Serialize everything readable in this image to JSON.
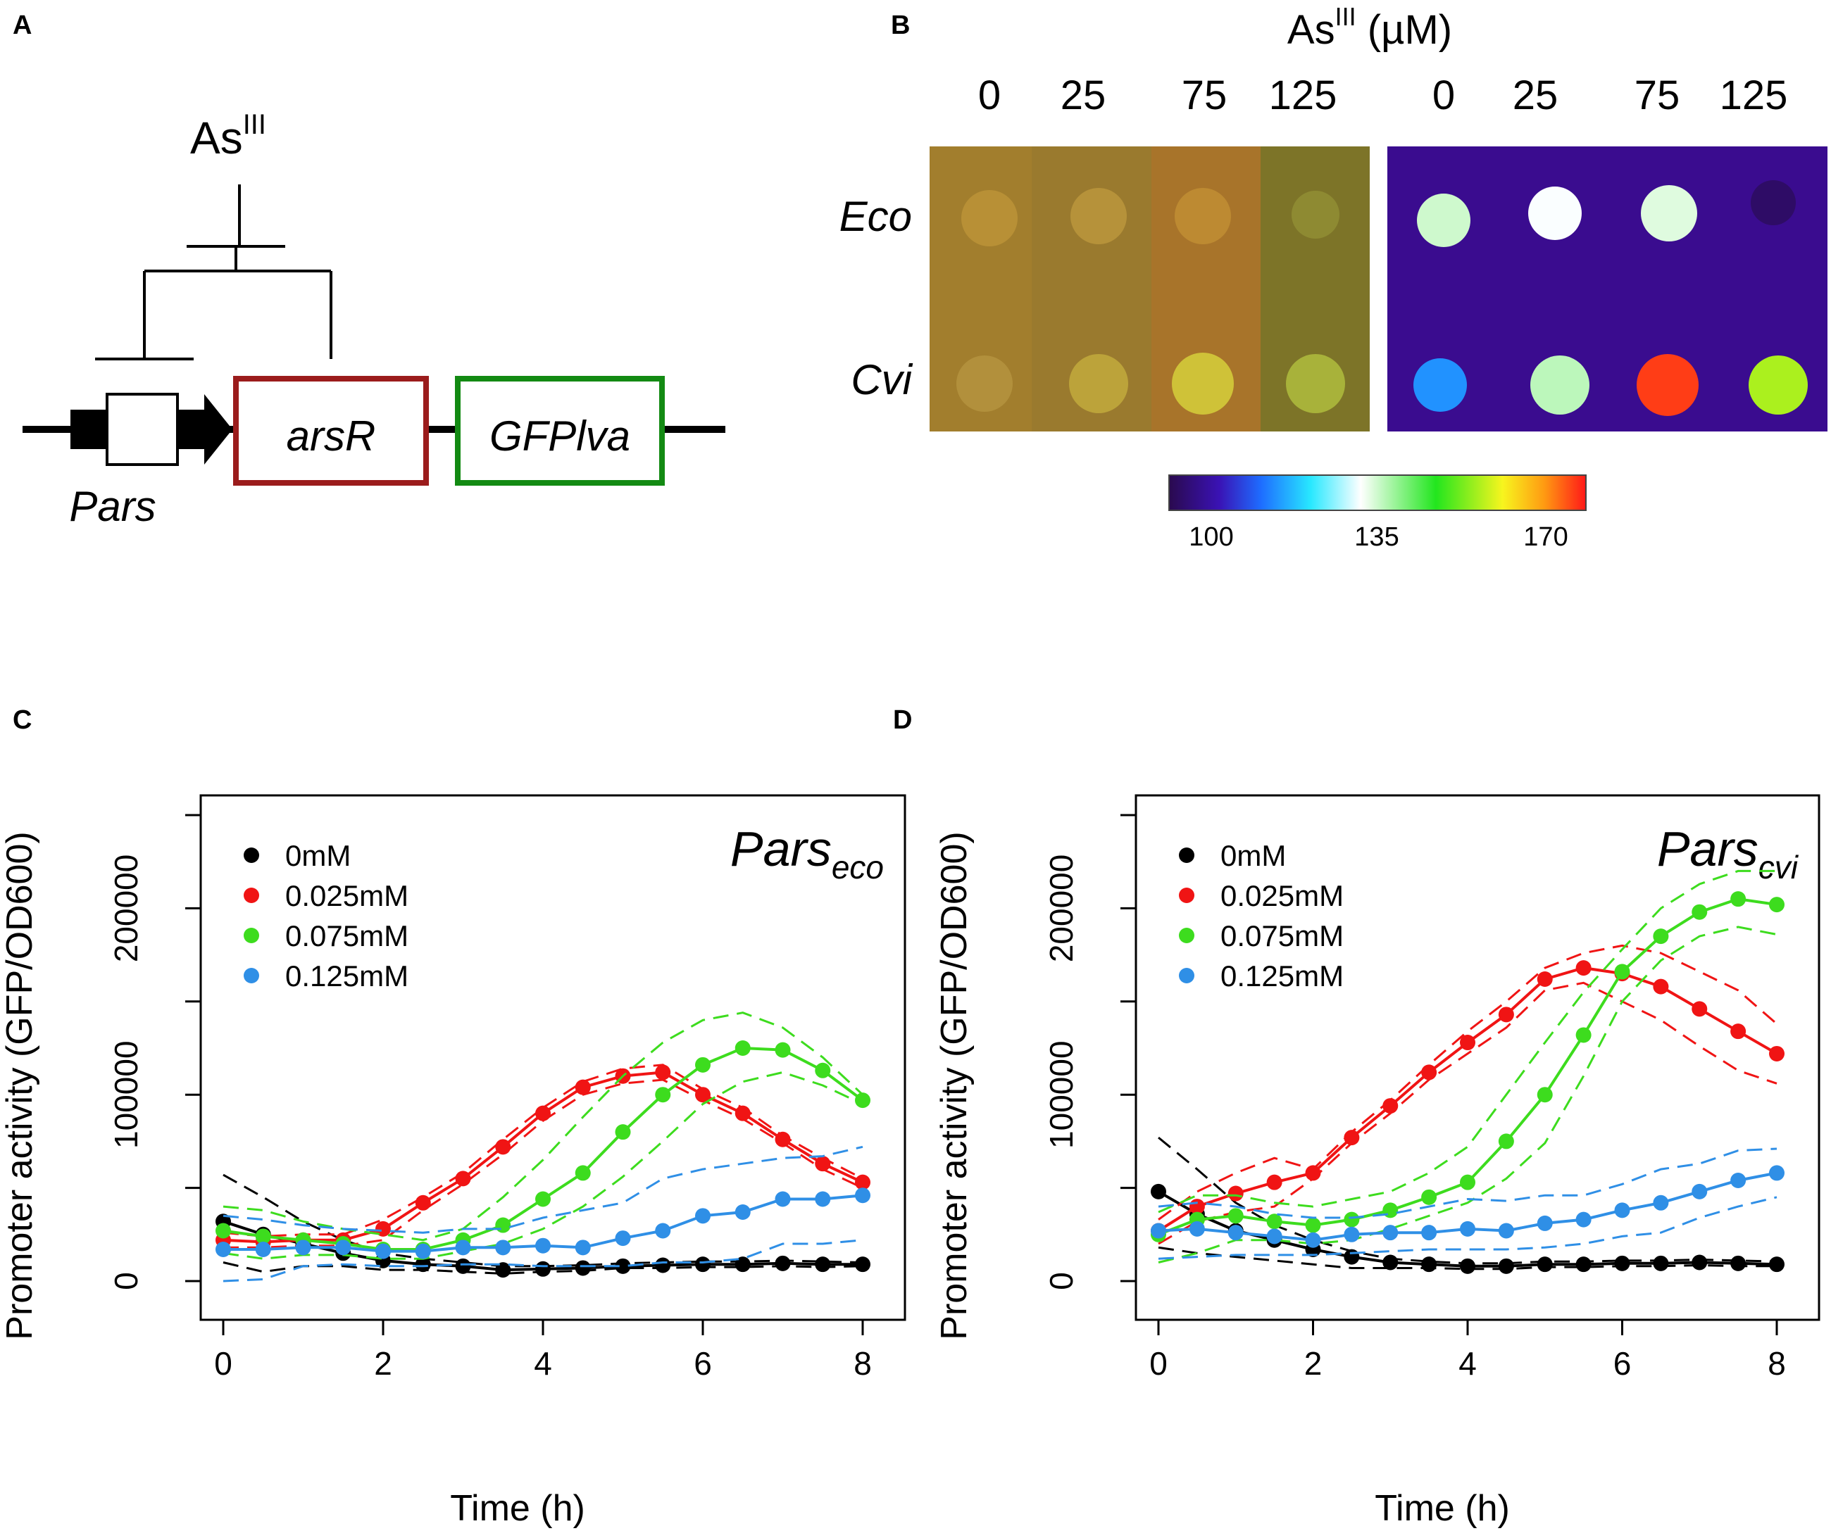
{
  "panel_labels": [
    "A",
    "B",
    "C",
    "D"
  ],
  "panel_a": {
    "effector_base": "As",
    "effector_sup": "III",
    "promoter": "Pars",
    "gene1": "arsR",
    "gene2": "GFPlva",
    "colors": {
      "gene1_box": "#9b1c1c",
      "gene2_box": "#138a13"
    }
  },
  "panel_b": {
    "title_base": "As",
    "title_sup": "III",
    "title_unit": " (µM)",
    "concentrations": [
      "0",
      "25",
      "75",
      "125"
    ],
    "strains": [
      "Eco",
      "Cvi"
    ],
    "colorbar_labels": [
      "100",
      "135",
      "170"
    ],
    "colorbar_range": [
      100,
      170
    ],
    "spot_intensity": {
      "Eco": [
        135,
        132,
        134,
        102
      ],
      "Cvi": [
        118,
        136,
        168,
        152
      ]
    }
  },
  "chart_data": [
    {
      "type": "line",
      "panel": "C",
      "title": "Pars",
      "title_sub": "eco",
      "xlabel": "Time (h)",
      "ylabel": "Promoter activity (GFP/OD600)",
      "xlim": [
        0,
        8
      ],
      "ylim": [
        0,
        250000
      ],
      "xticks": [
        "0",
        "2",
        "4",
        "6",
        "8"
      ],
      "yticks": [
        "0",
        "100000",
        "200000"
      ],
      "x": [
        0,
        0.5,
        1,
        1.5,
        2,
        2.5,
        3,
        3.5,
        4,
        4.5,
        5,
        5.5,
        6,
        6.5,
        7,
        7.5,
        8
      ],
      "series": [
        {
          "name": "0mM",
          "color": "#000000",
          "values": [
            32000,
            25000,
            20000,
            15000,
            11000,
            9000,
            8000,
            6000,
            6500,
            7000,
            8000,
            8500,
            9000,
            9000,
            9500,
            9000,
            9000
          ],
          "upper": [
            57000,
            45000,
            32000,
            22000,
            15000,
            12000,
            10000,
            8000,
            8000,
            8500,
            9500,
            10000,
            10500,
            10500,
            11000,
            10500,
            10000
          ],
          "lower": [
            10000,
            5000,
            8000,
            8000,
            6000,
            6000,
            5000,
            4000,
            5000,
            5500,
            7000,
            7000,
            7500,
            7500,
            8000,
            7500,
            8000
          ]
        },
        {
          "name": "0.025mM",
          "color": "#f01414",
          "values": [
            22000,
            21000,
            22000,
            22000,
            28000,
            42000,
            55000,
            72000,
            90000,
            104000,
            110000,
            112000,
            100000,
            90000,
            76000,
            63000,
            53000
          ],
          "upper": [
            26000,
            24000,
            25000,
            25000,
            33000,
            45000,
            58000,
            76000,
            93000,
            107000,
            114000,
            116000,
            103000,
            93000,
            78000,
            66000,
            55000
          ],
          "lower": [
            18000,
            18000,
            19000,
            19000,
            22000,
            38000,
            52000,
            68000,
            86000,
            100000,
            106000,
            108000,
            97000,
            87000,
            74000,
            60000,
            50000
          ]
        },
        {
          "name": "0.075mM",
          "color": "#3ddc1e",
          "values": [
            27000,
            24000,
            22000,
            20000,
            17000,
            17000,
            22000,
            30000,
            44000,
            58000,
            80000,
            100000,
            116000,
            125000,
            124000,
            113000,
            97000
          ],
          "upper": [
            40000,
            38000,
            32000,
            28000,
            25000,
            22000,
            28000,
            45000,
            65000,
            88000,
            110000,
            128000,
            140000,
            144000,
            136000,
            120000,
            100000
          ],
          "lower": [
            15000,
            12000,
            14000,
            14000,
            12000,
            12000,
            16000,
            20000,
            28000,
            40000,
            56000,
            75000,
            95000,
            107000,
            112000,
            105000,
            95000
          ]
        },
        {
          "name": "0.125mM",
          "color": "#2f8fe6",
          "values": [
            17000,
            17000,
            18000,
            18000,
            16000,
            16000,
            18000,
            18000,
            19000,
            18000,
            23000,
            27000,
            35000,
            37000,
            44000,
            44000,
            46000
          ],
          "upper": [
            35000,
            33000,
            30000,
            28000,
            27000,
            26000,
            28000,
            28000,
            34000,
            38000,
            42000,
            55000,
            60000,
            63000,
            66000,
            67000,
            72000
          ],
          "lower": [
            0,
            1000,
            8000,
            9000,
            8000,
            8000,
            9000,
            9000,
            8000,
            8000,
            8000,
            10000,
            10000,
            12000,
            20000,
            20000,
            22000
          ]
        }
      ]
    },
    {
      "type": "line",
      "panel": "D",
      "title": "Pars",
      "title_sub": "cvi",
      "xlabel": "Time (h)",
      "ylabel": "Promoter activity (GFP/OD600)",
      "xlim": [
        0,
        8
      ],
      "ylim": [
        0,
        250000
      ],
      "xticks": [
        "0",
        "2",
        "4",
        "6",
        "8"
      ],
      "yticks": [
        "0",
        "100000",
        "200000"
      ],
      "x": [
        0,
        0.5,
        1,
        1.5,
        2,
        2.5,
        3,
        3.5,
        4,
        4.5,
        5,
        5.5,
        6,
        6.5,
        7,
        7.5,
        8
      ],
      "series": [
        {
          "name": "0mM",
          "color": "#000000",
          "values": [
            48000,
            36000,
            27000,
            22000,
            17000,
            13000,
            10000,
            9000,
            8000,
            8000,
            9000,
            9000,
            9500,
            9500,
            10000,
            9500,
            9000
          ],
          "upper": [
            77000,
            60000,
            42000,
            30000,
            22000,
            16000,
            12000,
            10500,
            9500,
            9500,
            10500,
            10500,
            11000,
            11000,
            11500,
            11000,
            10500
          ],
          "lower": [
            18000,
            15000,
            13000,
            11000,
            9000,
            7000,
            7000,
            7000,
            6500,
            6500,
            7500,
            7500,
            8000,
            8000,
            8500,
            8000,
            8000
          ]
        },
        {
          "name": "0.025mM",
          "color": "#f01414",
          "values": [
            27000,
            40000,
            47000,
            53000,
            58000,
            77000,
            94000,
            112000,
            128000,
            143000,
            162000,
            168000,
            165000,
            158000,
            146000,
            134000,
            122000
          ],
          "upper": [
            33000,
            48000,
            58000,
            66000,
            60000,
            80000,
            97000,
            116000,
            134000,
            150000,
            168000,
            176000,
            180000,
            176000,
            166000,
            156000,
            138000
          ],
          "lower": [
            20000,
            32000,
            37000,
            40000,
            55000,
            74000,
            90000,
            108000,
            122000,
            136000,
            156000,
            160000,
            150000,
            140000,
            126000,
            113000,
            106000
          ]
        },
        {
          "name": "0.075mM",
          "color": "#3ddc1e",
          "values": [
            25000,
            33000,
            35000,
            32000,
            30000,
            33000,
            38000,
            45000,
            53000,
            75000,
            100000,
            132000,
            166000,
            185000,
            198000,
            205000,
            202000
          ],
          "upper": [
            37000,
            46000,
            46000,
            42000,
            40000,
            44000,
            48000,
            58000,
            72000,
            100000,
            128000,
            155000,
            178000,
            200000,
            213000,
            220000,
            220000
          ],
          "lower": [
            10000,
            15000,
            22000,
            22000,
            20000,
            22000,
            28000,
            35000,
            42000,
            55000,
            74000,
            110000,
            150000,
            172000,
            185000,
            190000,
            186000
          ]
        },
        {
          "name": "0.125mM",
          "color": "#2f8fe6",
          "values": [
            27000,
            28000,
            26000,
            24000,
            22000,
            25000,
            26000,
            26000,
            28000,
            27000,
            31000,
            33000,
            38000,
            42000,
            48000,
            54000,
            58000
          ],
          "upper": [
            40000,
            42000,
            40000,
            36000,
            34000,
            34000,
            36000,
            40000,
            44000,
            43000,
            46000,
            46000,
            52000,
            60000,
            63000,
            70000,
            71000
          ],
          "lower": [
            12000,
            13000,
            14000,
            14000,
            14000,
            15000,
            16000,
            17000,
            17000,
            17000,
            18000,
            20000,
            24000,
            26000,
            34000,
            40000,
            45000
          ]
        }
      ]
    }
  ]
}
